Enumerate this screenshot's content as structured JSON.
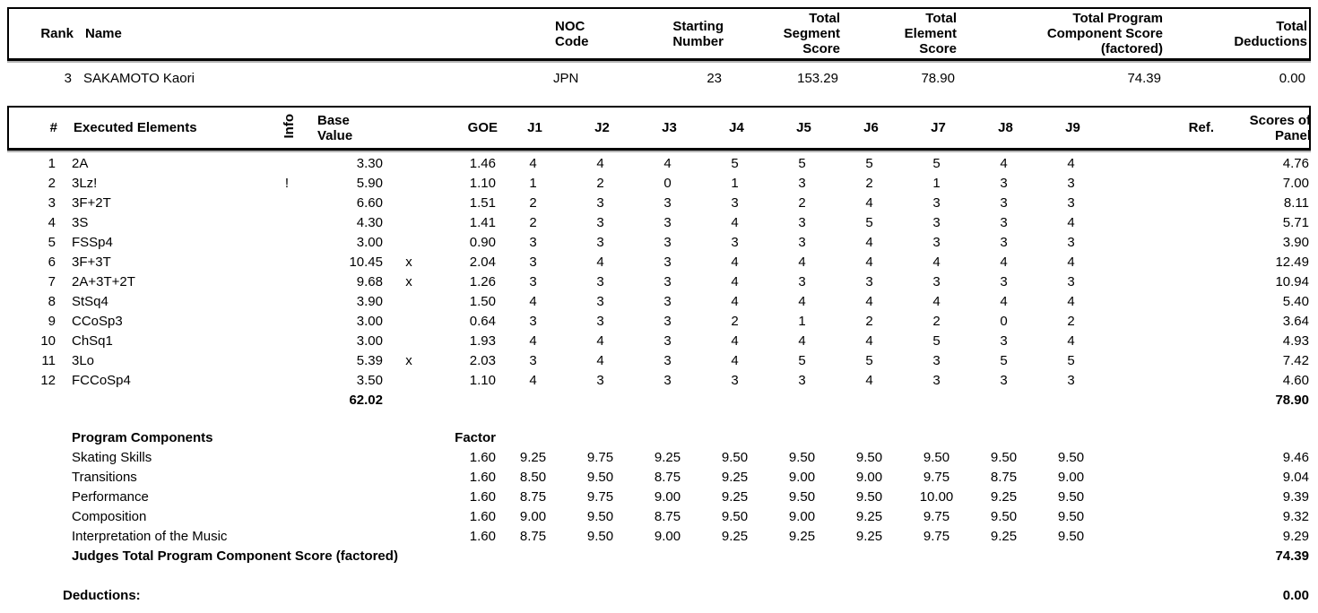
{
  "colors": {
    "text": "#000000",
    "background": "#ffffff",
    "box_border": "#000000",
    "box_shadow": "#b4b4b4"
  },
  "result": {
    "headers": {
      "rank": "Rank",
      "name": "Name",
      "noc": "NOC\nCode",
      "starting": "Starting\nNumber",
      "segment": "Total\nSegment\nScore",
      "element": "Total\nElement\nScore",
      "components": "Total Program\nComponent Score\n(factored)",
      "deductions": "Total\nDeductions"
    },
    "row": {
      "rank": "3",
      "name": "SAKAMOTO Kaori",
      "noc": "JPN",
      "starting": "23",
      "segment": "153.29",
      "element": "78.90",
      "components": "74.39",
      "deductions": "0.00"
    }
  },
  "elements": {
    "headers": {
      "num": "#",
      "executed": "Executed Elements",
      "info": "Info",
      "base_value": "Base\nValue",
      "goe": "GOE",
      "judges": [
        "J1",
        "J2",
        "J3",
        "J4",
        "J5",
        "J6",
        "J7",
        "J8",
        "J9"
      ],
      "ref": "Ref.",
      "panel": "Scores of\nPanel"
    },
    "rows": [
      {
        "num": "1",
        "name": "2A",
        "info": "",
        "base_value": "3.30",
        "credit": "",
        "goe": "1.46",
        "judges": [
          "4",
          "4",
          "4",
          "5",
          "5",
          "5",
          "5",
          "4",
          "4"
        ],
        "ref": "",
        "panel": "4.76"
      },
      {
        "num": "2",
        "name": "3Lz!",
        "info": "!",
        "base_value": "5.90",
        "credit": "",
        "goe": "1.10",
        "judges": [
          "1",
          "2",
          "0",
          "1",
          "3",
          "2",
          "1",
          "3",
          "3"
        ],
        "ref": "",
        "panel": "7.00"
      },
      {
        "num": "3",
        "name": "3F+2T",
        "info": "",
        "base_value": "6.60",
        "credit": "",
        "goe": "1.51",
        "judges": [
          "2",
          "3",
          "3",
          "3",
          "2",
          "4",
          "3",
          "3",
          "3"
        ],
        "ref": "",
        "panel": "8.11"
      },
      {
        "num": "4",
        "name": "3S",
        "info": "",
        "base_value": "4.30",
        "credit": "",
        "goe": "1.41",
        "judges": [
          "2",
          "3",
          "3",
          "4",
          "3",
          "5",
          "3",
          "3",
          "4"
        ],
        "ref": "",
        "panel": "5.71"
      },
      {
        "num": "5",
        "name": "FSSp4",
        "info": "",
        "base_value": "3.00",
        "credit": "",
        "goe": "0.90",
        "judges": [
          "3",
          "3",
          "3",
          "3",
          "3",
          "4",
          "3",
          "3",
          "3"
        ],
        "ref": "",
        "panel": "3.90"
      },
      {
        "num": "6",
        "name": "3F+3T",
        "info": "",
        "base_value": "10.45",
        "credit": "x",
        "goe": "2.04",
        "judges": [
          "3",
          "4",
          "3",
          "4",
          "4",
          "4",
          "4",
          "4",
          "4"
        ],
        "ref": "",
        "panel": "12.49"
      },
      {
        "num": "7",
        "name": "2A+3T+2T",
        "info": "",
        "base_value": "9.68",
        "credit": "x",
        "goe": "1.26",
        "judges": [
          "3",
          "3",
          "3",
          "4",
          "3",
          "3",
          "3",
          "3",
          "3"
        ],
        "ref": "",
        "panel": "10.94"
      },
      {
        "num": "8",
        "name": "StSq4",
        "info": "",
        "base_value": "3.90",
        "credit": "",
        "goe": "1.50",
        "judges": [
          "4",
          "3",
          "3",
          "4",
          "4",
          "4",
          "4",
          "4",
          "4"
        ],
        "ref": "",
        "panel": "5.40"
      },
      {
        "num": "9",
        "name": "CCoSp3",
        "info": "",
        "base_value": "3.00",
        "credit": "",
        "goe": "0.64",
        "judges": [
          "3",
          "3",
          "3",
          "2",
          "1",
          "2",
          "2",
          "0",
          "2"
        ],
        "ref": "",
        "panel": "3.64"
      },
      {
        "num": "10",
        "name": "ChSq1",
        "info": "",
        "base_value": "3.00",
        "credit": "",
        "goe": "1.93",
        "judges": [
          "4",
          "4",
          "3",
          "4",
          "4",
          "4",
          "5",
          "3",
          "4"
        ],
        "ref": "",
        "panel": "4.93"
      },
      {
        "num": "11",
        "name": "3Lo",
        "info": "",
        "base_value": "5.39",
        "credit": "x",
        "goe": "2.03",
        "judges": [
          "3",
          "4",
          "3",
          "4",
          "5",
          "5",
          "3",
          "5",
          "5"
        ],
        "ref": "",
        "panel": "7.42"
      },
      {
        "num": "12",
        "name": "FCCoSp4",
        "info": "",
        "base_value": "3.50",
        "credit": "",
        "goe": "1.10",
        "judges": [
          "4",
          "3",
          "3",
          "3",
          "3",
          "4",
          "3",
          "3",
          "3"
        ],
        "ref": "",
        "panel": "4.60"
      }
    ],
    "total_base_value": "62.02",
    "total_panel": "78.90"
  },
  "components": {
    "title": "Program Components",
    "factor_label": "Factor",
    "rows": [
      {
        "name": "Skating Skills",
        "factor": "1.60",
        "judges": [
          "9.25",
          "9.75",
          "9.25",
          "9.50",
          "9.50",
          "9.50",
          "9.50",
          "9.50",
          "9.50"
        ],
        "panel": "9.46"
      },
      {
        "name": "Transitions",
        "factor": "1.60",
        "judges": [
          "8.50",
          "9.50",
          "8.75",
          "9.25",
          "9.00",
          "9.00",
          "9.75",
          "8.75",
          "9.00"
        ],
        "panel": "9.04"
      },
      {
        "name": "Performance",
        "factor": "1.60",
        "judges": [
          "8.75",
          "9.75",
          "9.00",
          "9.25",
          "9.50",
          "9.50",
          "10.00",
          "9.25",
          "9.50"
        ],
        "panel": "9.39"
      },
      {
        "name": "Composition",
        "factor": "1.60",
        "judges": [
          "9.00",
          "9.50",
          "8.75",
          "9.50",
          "9.00",
          "9.25",
          "9.75",
          "9.50",
          "9.50"
        ],
        "panel": "9.32"
      },
      {
        "name": "Interpretation of the Music",
        "factor": "1.60",
        "judges": [
          "8.75",
          "9.50",
          "9.00",
          "9.25",
          "9.25",
          "9.25",
          "9.75",
          "9.25",
          "9.50"
        ],
        "panel": "9.29"
      }
    ],
    "total_label": "Judges Total Program Component Score (factored)",
    "total_value": "74.39"
  },
  "deductions": {
    "label": "Deductions:",
    "value": "0.00"
  }
}
